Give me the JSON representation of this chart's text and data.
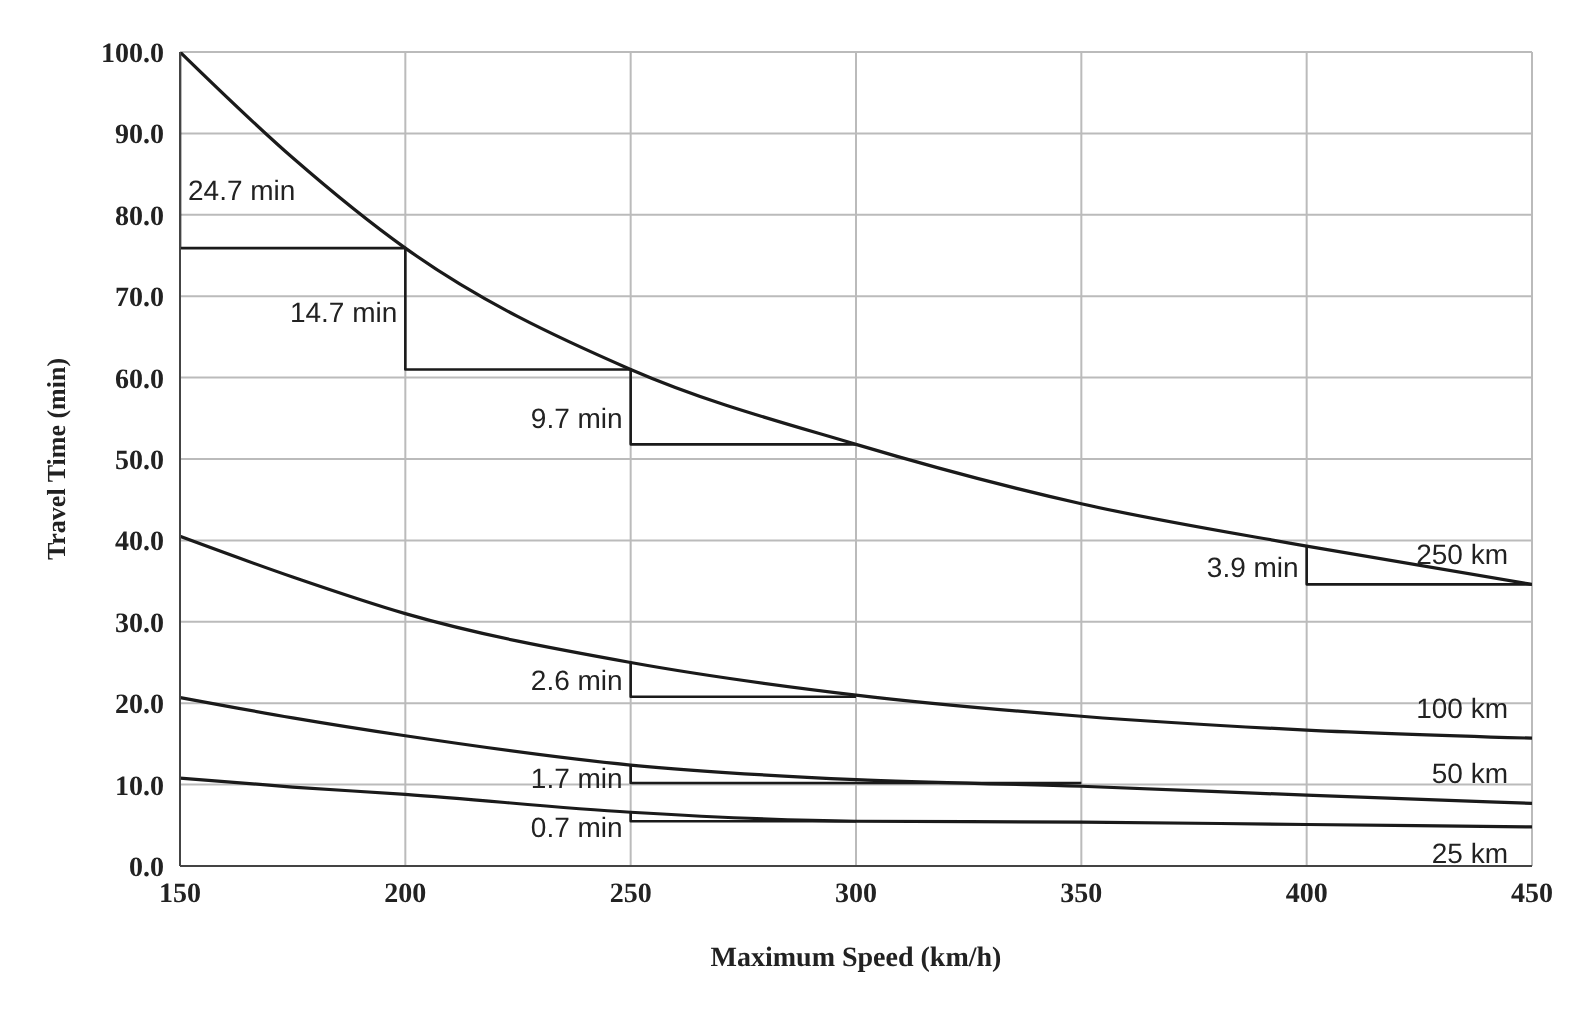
{
  "chart_data": {
    "type": "line",
    "xlabel": "Maximum Speed (km/h)",
    "ylabel": "Travel Time (min)",
    "x": [
      150,
      175,
      200,
      250,
      300,
      350,
      400,
      450
    ],
    "series": [
      {
        "name": "250 km",
        "color": "#1a1a1a",
        "values": [
          100,
          87,
          75.9,
          61,
          51.8,
          44.5,
          39.3,
          34.6
        ]
      },
      {
        "name": "100 km",
        "color": "#1a1a1a",
        "values": [
          40.5,
          35.5,
          31,
          25,
          21,
          18.4,
          16.7,
          15.7
        ]
      },
      {
        "name": "50 km",
        "color": "#1a1a1a",
        "values": [
          20.7,
          18.2,
          16,
          12.4,
          10.6,
          9.8,
          8.7,
          7.7
        ]
      },
      {
        "name": "25 km",
        "color": "#1a1a1a",
        "values": [
          10.8,
          9.7,
          8.8,
          6.6,
          5.5,
          5.4,
          5.1,
          4.8
        ]
      },
      {
        "type": "line",
        "color": "#1a1a1a",
        "x": [
          150,
          150,
          200,
          200,
          250,
          250,
          300
        ],
        "values": [
          100,
          75.9,
          75.9,
          61,
          61,
          51.8,
          51.8
        ]
      },
      {
        "type": "line",
        "color": "#1a1a1a",
        "x": [
          400,
          400,
          450
        ],
        "values": [
          39.3,
          34.6,
          34.6
        ]
      },
      {
        "type": "line",
        "color": "#1a1a1a",
        "x": [
          250,
          250,
          300
        ],
        "values": [
          25,
          20.8,
          20.8
        ]
      },
      {
        "type": "line",
        "color": "#1a1a1a",
        "x": [
          250,
          250,
          350
        ],
        "values": [
          12.4,
          10.2,
          10.2
        ]
      },
      {
        "type": "line",
        "color": "#1a1a1a",
        "x": [
          250,
          250,
          300
        ],
        "values": [
          6.6,
          5.5,
          5.5
        ]
      }
    ],
    "annotations": [
      {
        "text": "24.7 min",
        "x": 150,
        "y": 83
      },
      {
        "text": "14.7 min",
        "x": 200,
        "y": 68
      },
      {
        "text": "9.7 min",
        "x": 250,
        "y": 55
      },
      {
        "text": "3.9 min",
        "x": 400,
        "y": 36.7
      },
      {
        "text": "2.6 min",
        "x": 250,
        "y": 22.8
      },
      {
        "text": "1.7 min",
        "x": 250,
        "y": 10.8
      },
      {
        "text": "0.7 min",
        "x": 250,
        "y": 4.8
      }
    ],
    "xlim": [
      150,
      450
    ],
    "xticks": [
      150,
      200,
      250,
      300,
      350,
      400,
      450
    ],
    "ylim": [
      0,
      100
    ],
    "yticks": [
      {
        "value": 0,
        "label": "0.0"
      },
      {
        "value": 10,
        "label": "10.0"
      },
      {
        "value": 20,
        "label": "20.0"
      },
      {
        "value": 30,
        "label": "30.0"
      },
      {
        "value": 40,
        "label": "40.0"
      },
      {
        "value": 50,
        "label": "50.0"
      },
      {
        "value": 60,
        "label": "60.0"
      },
      {
        "value": 70,
        "label": "70.0"
      },
      {
        "value": 80,
        "label": "80.0"
      },
      {
        "value": 90,
        "label": "90.0"
      },
      {
        "value": 100,
        "label": "100.0"
      }
    ],
    "grid": true,
    "legend": false,
    "marker": "none",
    "line_style": "solid"
  }
}
